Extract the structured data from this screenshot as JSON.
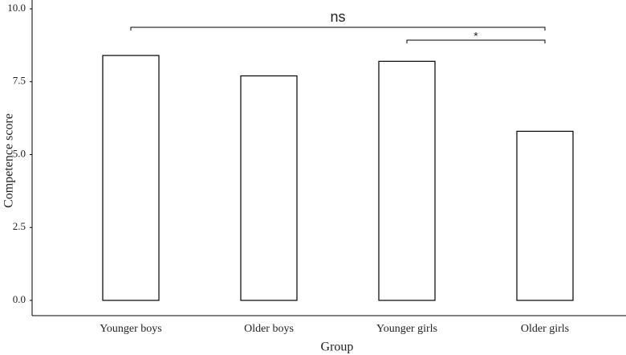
{
  "chart_data": {
    "type": "bar",
    "x_label": "Group",
    "y_label": "Competence score",
    "categories": [
      "Younger boys",
      "Older boys",
      "Younger girls",
      "Older girls"
    ],
    "values": [
      8.4,
      7.7,
      8.2,
      5.8
    ],
    "color": "#ffffff",
    "edge_color": "#000000",
    "ylim": [
      0,
      10
    ],
    "yticks": [
      {
        "value": 0,
        "label": "0.0"
      },
      {
        "value": 2.5,
        "label": "2.5"
      },
      {
        "value": 5,
        "label": "5.0"
      },
      {
        "value": 7.5,
        "label": "7.5"
      },
      {
        "value": 10,
        "label": "10.0"
      }
    ],
    "grid": false,
    "annotations": [
      {
        "text": "ns"
      },
      {
        "text": "*"
      }
    ]
  }
}
